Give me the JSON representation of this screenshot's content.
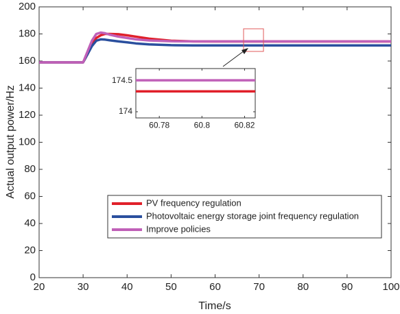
{
  "chart_data": [
    {
      "type": "line",
      "x_label": "Time/s",
      "y_label": "Actual output power/Hz",
      "x": [
        20,
        30,
        31,
        32,
        33,
        34,
        35,
        36,
        38,
        40,
        42,
        45,
        50,
        55,
        60,
        70,
        80,
        90,
        100
      ],
      "series": [
        {
          "name": "PV frequency regulation",
          "color": "#e0202a",
          "values": [
            159,
            159,
            165,
            172,
            177,
            179,
            180,
            180,
            179.8,
            179,
            178,
            176.5,
            175,
            174.5,
            174.4,
            174.4,
            174.4,
            174.4,
            174.4
          ]
        },
        {
          "name": "Photovoltaic energy storage joint frequency regulation",
          "color": "#2a4f9e",
          "values": [
            159,
            159,
            165,
            171,
            175,
            176,
            175.8,
            175.3,
            174.5,
            173.8,
            173,
            172.3,
            171.7,
            171.5,
            171.5,
            171.5,
            171.5,
            171.5,
            171.5
          ]
        },
        {
          "name": "Improve policies",
          "color": "#c060b8",
          "values": [
            159,
            159,
            167,
            175,
            180,
            181,
            180.5,
            179.5,
            178,
            177,
            176,
            175.2,
            174.6,
            174.5,
            174.5,
            174.5,
            174.5,
            174.5,
            174.5
          ]
        }
      ],
      "xlim": [
        20,
        100
      ],
      "xticks": [
        20,
        30,
        40,
        50,
        60,
        70,
        80,
        90,
        100
      ],
      "ylim": [
        0,
        200
      ],
      "yticks": [
        0,
        20,
        40,
        60,
        80,
        100,
        120,
        140,
        160,
        180,
        200
      ],
      "legend": "lower right"
    },
    {
      "type": "line",
      "x": [
        60.769,
        60.825
      ],
      "series": [
        {
          "color": "#e0202a",
          "values": [
            174.33,
            174.33
          ]
        },
        {
          "color": "#c060b8",
          "values": [
            174.51,
            174.51
          ]
        }
      ],
      "xlim": [
        60.769,
        60.825
      ],
      "xticks": [
        60.78,
        60.8,
        60.82
      ],
      "ylim": [
        173.9,
        174.7
      ],
      "yticks": [
        174,
        174.5
      ]
    }
  ]
}
